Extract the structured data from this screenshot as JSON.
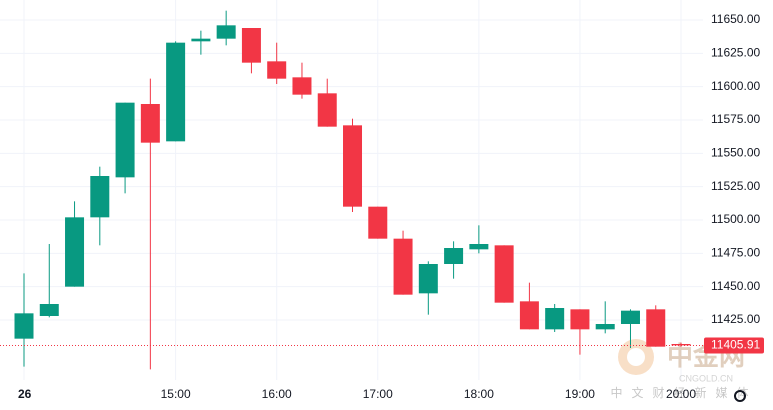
{
  "chart_data": {
    "type": "candlestick",
    "categories": [
      "26",
      null,
      null,
      null,
      null,
      null,
      "15:00",
      null,
      null,
      null,
      "16:00",
      null,
      null,
      null,
      "17:00",
      null,
      null,
      null,
      "18:00",
      null,
      null,
      null,
      "19:00",
      null,
      null,
      null,
      "20:00"
    ],
    "open": [
      11411,
      11428,
      11450,
      11502,
      11532,
      11587,
      11559,
      11634,
      11636,
      11644,
      11619,
      11607,
      11595,
      11571,
      11510,
      11486,
      11445,
      11467,
      11478,
      11481,
      11439,
      11418,
      11433,
      11418,
      11422,
      11433,
      11407
    ],
    "high": [
      11460,
      11482,
      11514,
      11540,
      11588,
      11606,
      11634,
      11642,
      11657,
      11644,
      11633,
      11618,
      11606,
      11576,
      11510,
      11492,
      11469,
      11484,
      11496,
      11481,
      11453,
      11437,
      11433,
      11439,
      11433,
      11436,
      11408
    ],
    "low": [
      11390,
      11427,
      11450,
      11481,
      11520,
      11388,
      11559,
      11624,
      11631,
      11610,
      11602,
      11591,
      11570,
      11506,
      11486,
      11444,
      11429,
      11456,
      11475,
      11438,
      11418,
      11416,
      11399,
      11415,
      11404,
      11405,
      11405
    ],
    "close": [
      11430,
      11437,
      11502,
      11533,
      11588,
      11558,
      11633,
      11636,
      11646,
      11618,
      11606,
      11594,
      11570,
      11510,
      11486,
      11444,
      11467,
      11479,
      11482,
      11438,
      11418,
      11434,
      11418,
      11422,
      11432,
      11405,
      11406
    ],
    "up_color": "#089981",
    "down_color": "#f23645",
    "ylim": [
      11380,
      11665
    ],
    "yticks": [
      {
        "value": 11425,
        "label": "11425.00"
      },
      {
        "value": 11450,
        "label": "11450.00"
      },
      {
        "value": 11475,
        "label": "11475.00"
      },
      {
        "value": 11500,
        "label": "11500.00"
      },
      {
        "value": 11525,
        "label": "11525.00"
      },
      {
        "value": 11550,
        "label": "11550.00"
      },
      {
        "value": 11575,
        "label": "11575.00"
      },
      {
        "value": 11600,
        "label": "11600.00"
      },
      {
        "value": 11625,
        "label": "11625.00"
      },
      {
        "value": 11650,
        "label": "11650.00"
      }
    ],
    "last_price": 11405.91,
    "grid": true
  },
  "watermark": {
    "logo": "中金网",
    "domain": "CNGOLD.CN",
    "slogan": "中文财经新媒体"
  }
}
